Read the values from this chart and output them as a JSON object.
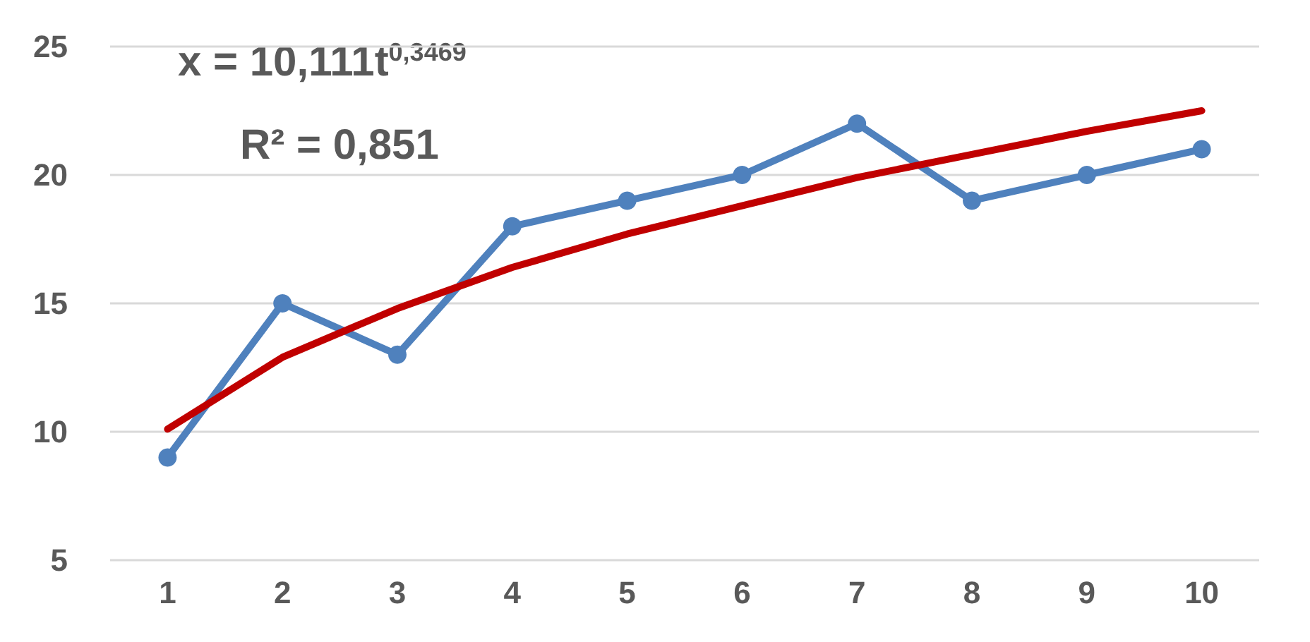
{
  "chart_data": {
    "type": "line",
    "categories": [
      "1",
      "2",
      "3",
      "4",
      "5",
      "6",
      "7",
      "8",
      "9",
      "10"
    ],
    "series": [
      {
        "color": "#4f81bd",
        "values": [
          9,
          15,
          13,
          18,
          19,
          20,
          22,
          19,
          20,
          21
        ],
        "marker": "circle"
      },
      {
        "color": "#c00000",
        "values": [
          10.1,
          12.9,
          14.8,
          16.4,
          17.7,
          18.8,
          19.9,
          20.8,
          21.7,
          22.5
        ],
        "marker": "none"
      }
    ],
    "ylim": [
      5,
      25
    ],
    "yticks": [
      5,
      10,
      15,
      20,
      25
    ],
    "grid": "y",
    "line_style": "solid",
    "annotations": [
      "x = 10,111t$^{0,3469}$",
      "R² = 0,851"
    ]
  }
}
